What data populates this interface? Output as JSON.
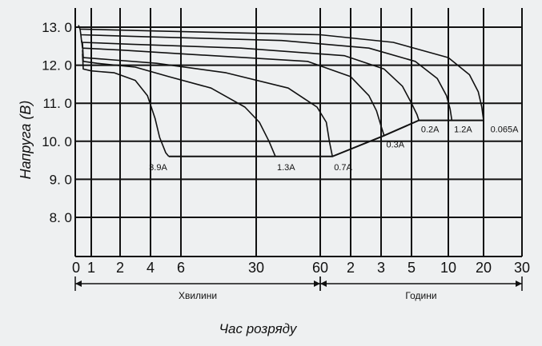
{
  "chart_data": {
    "type": "line",
    "title": "",
    "ylabel": "Напруга (В)",
    "xlabel": "Час розряду",
    "ylim": [
      7.0,
      13.3
    ],
    "yticks": [
      "13. 0",
      "12. 0",
      "11. 0",
      "10. 0",
      "9. 0",
      "8. 0"
    ],
    "ytick_values": [
      13,
      12,
      11,
      10,
      9,
      8
    ],
    "xticks": [
      "0",
      "1",
      "2",
      "4",
      "6",
      "30",
      "60",
      "2",
      "3",
      "5",
      "10",
      "20",
      "30"
    ],
    "xtick_positions": [
      0,
      1,
      2,
      3,
      4,
      5,
      6,
      7,
      8,
      9,
      10,
      11,
      12
    ],
    "axis_sections": [
      {
        "label": "Хвилини",
        "from": 0,
        "to": 6
      },
      {
        "label": "Години",
        "from": 6,
        "to": 12
      }
    ],
    "cutoff_line": {
      "x": [
        3.6,
        5.3,
        6.4,
        8.1,
        9.2,
        10.1,
        11.0
      ],
      "y": [
        9.6,
        9.6,
        9.6,
        10.15,
        10.55,
        10.55,
        10.55
      ]
    },
    "series": [
      {
        "name": "3.9A",
        "x": [
          0.45,
          0.5,
          1.0,
          1.8,
          2.5,
          2.9,
          3.15,
          3.3,
          3.5,
          3.6
        ],
        "y": [
          12.3,
          11.9,
          11.85,
          11.8,
          11.6,
          11.2,
          10.6,
          10.1,
          9.7,
          9.6
        ]
      },
      {
        "name": "1.3A",
        "x": [
          0.45,
          0.5,
          1.2,
          2.5,
          3.6,
          4.4,
          4.85,
          5.05,
          5.2,
          5.3
        ],
        "y": [
          12.4,
          12.1,
          12.05,
          11.95,
          11.7,
          11.4,
          10.9,
          10.5,
          10.0,
          9.6
        ]
      },
      {
        "name": "0.7A",
        "x": [
          0.45,
          0.5,
          1.6,
          3.2,
          4.6,
          5.5,
          5.95,
          6.2,
          6.3,
          6.4
        ],
        "y": [
          12.6,
          12.2,
          12.15,
          12.05,
          11.8,
          11.4,
          10.9,
          10.5,
          10.0,
          9.6
        ]
      },
      {
        "name": "0.3A",
        "x": [
          0.4,
          0.45,
          2.0,
          4.0,
          5.8,
          7.0,
          7.6,
          7.85,
          8.0,
          8.1
        ],
        "y": [
          12.65,
          12.45,
          12.4,
          12.3,
          12.1,
          11.7,
          11.2,
          10.8,
          10.4,
          10.15
        ]
      },
      {
        "name": "0.2A",
        "x": [
          0.35,
          0.4,
          2.4,
          4.8,
          6.8,
          8.1,
          8.7,
          9.0,
          9.15,
          9.2
        ],
        "y": [
          12.8,
          12.6,
          12.55,
          12.45,
          12.25,
          11.9,
          11.45,
          11.0,
          10.7,
          10.55
        ]
      },
      {
        "name": "1.2A",
        "x": [
          0.3,
          0.35,
          2.8,
          5.4,
          7.6,
          9.1,
          9.7,
          9.95,
          10.05,
          10.1
        ],
        "y": [
          12.95,
          12.8,
          12.75,
          12.65,
          12.45,
          12.1,
          11.65,
          11.2,
          10.85,
          10.55
        ]
      },
      {
        "name": "0.065A",
        "x": [
          0.2,
          0.3,
          3.2,
          6.0,
          8.4,
          10.0,
          10.6,
          10.85,
          10.95,
          11.0
        ],
        "y": [
          13.05,
          12.95,
          12.9,
          12.8,
          12.6,
          12.2,
          11.75,
          11.3,
          10.9,
          10.55
        ]
      }
    ],
    "grid": true,
    "legend": "none"
  }
}
